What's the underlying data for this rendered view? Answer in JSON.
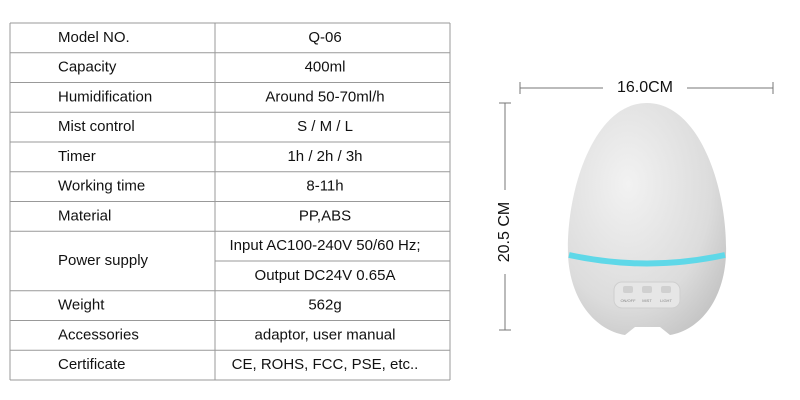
{
  "table": {
    "rows": [
      {
        "label": "Model NO.",
        "values": [
          "Q-06"
        ]
      },
      {
        "label": "Capacity",
        "values": [
          "400ml"
        ]
      },
      {
        "label": "Humidification",
        "values": [
          "Around 50-70ml/h"
        ]
      },
      {
        "label": "Mist control",
        "values": [
          "S / M / L"
        ]
      },
      {
        "label": "Timer",
        "values": [
          "1h / 2h / 3h"
        ]
      },
      {
        "label": "Working time",
        "values": [
          "8-11h"
        ]
      },
      {
        "label": "Material",
        "values": [
          "PP,ABS"
        ]
      },
      {
        "label": "Power supply",
        "values": [
          "Input AC100-240V 50/60 Hz;",
          "Output DC24V 0.65A"
        ]
      },
      {
        "label": "Weight",
        "values": [
          "562g"
        ]
      },
      {
        "label": "Accessories",
        "values": [
          "adaptor, user manual"
        ]
      },
      {
        "label": "Certificate",
        "values": [
          "CE, ROHS, FCC, PSE, etc.."
        ]
      }
    ]
  },
  "product": {
    "width_label": "16.0CM",
    "height_label": "20.5 CM",
    "buttons": [
      "ON/OFF",
      "MIST",
      "LIGHT"
    ]
  }
}
